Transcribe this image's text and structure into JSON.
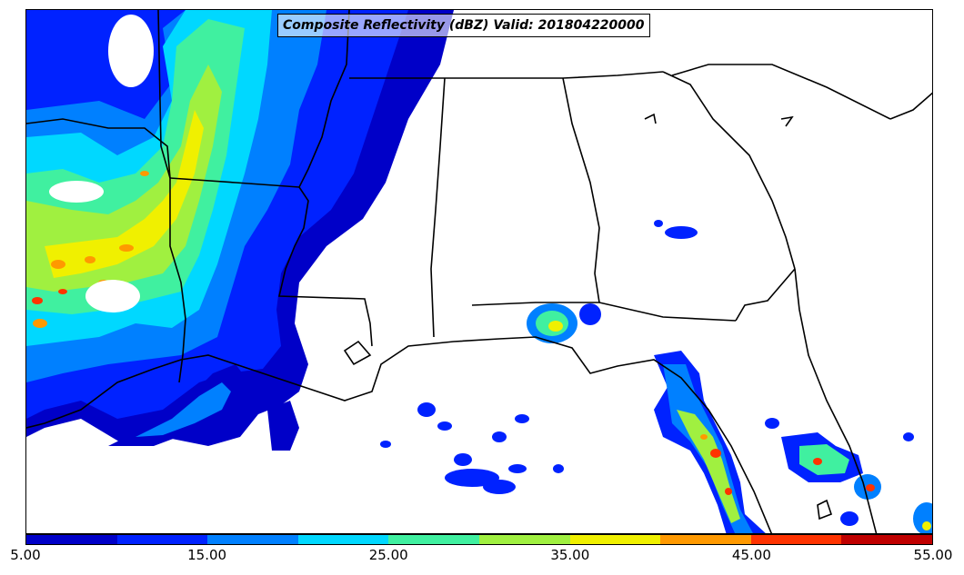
{
  "title": "Composite Reflectivity (dBZ) Valid: 201804220000",
  "variable": "Composite Reflectivity",
  "units": "dBZ",
  "valid_time": "201804220000",
  "colorbar": {
    "min": 5.0,
    "max": 55.0,
    "tick_labels": [
      "5.00",
      "15.00",
      "25.00",
      "35.00",
      "45.00",
      "55.00"
    ],
    "colors": [
      "#0000c8",
      "#0022ff",
      "#0080ff",
      "#00d8ff",
      "#40f0a0",
      "#a0f040",
      "#f0f000",
      "#ff9900",
      "#ff3300",
      "#c00000"
    ]
  },
  "map": {
    "region": "Southeastern United States and northern Gulf of Mexico",
    "boundaries": [
      "state borders",
      "coastlines"
    ],
    "land_color": "#ffffff",
    "line_color": "#000000"
  }
}
